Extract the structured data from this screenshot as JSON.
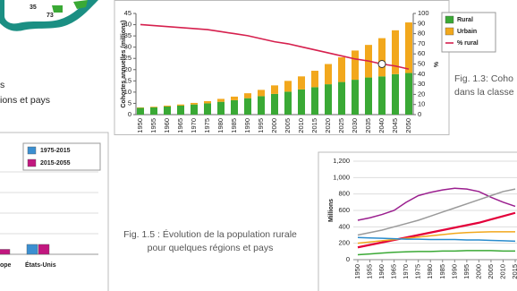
{
  "document": {
    "map_labels": [
      "35",
      "73"
    ],
    "left_heading": [
      "s",
      "ions et pays"
    ],
    "fig13_caption": [
      "Fig. 1.3: Coho",
      "dans la classe"
    ],
    "fig15_caption": [
      "Fig. 1.5 : Évolution de la population rurale",
      "pour quelques régions et pays"
    ]
  },
  "chart_data": [
    {
      "type": "bar",
      "stacked": true,
      "ylabel": "Cohortes annuelles (millions)",
      "y2label": "%",
      "categories": [
        "1950",
        "1955",
        "1960",
        "1965",
        "1970",
        "1975",
        "1980",
        "1985",
        "1990",
        "1995",
        "2000",
        "2005",
        "2010",
        "2015",
        "2020",
        "2025",
        "2030",
        "2035",
        "2040",
        "2045",
        "2050"
      ],
      "series": [
        {
          "name": "Rural",
          "color": "#3aa935",
          "values": [
            3,
            3.2,
            3.6,
            4,
            4.5,
            5,
            5.7,
            6.4,
            7.3,
            8.2,
            9.2,
            10.2,
            11.2,
            12.2,
            13.5,
            14.5,
            15.5,
            16.5,
            17,
            18,
            18.5
          ]
        },
        {
          "name": "Urbain",
          "color": "#f2a81d",
          "values": [
            0.2,
            0.3,
            0.4,
            0.5,
            0.7,
            1,
            1.3,
            1.6,
            2.2,
            2.8,
            3.8,
            4.8,
            5.8,
            7.3,
            9,
            11,
            13,
            14.5,
            17,
            19.5,
            22.5
          ]
        },
        {
          "name": "% rural",
          "color": "#d6204e",
          "axis": "y2",
          "values": [
            89,
            88,
            87,
            86,
            85,
            84,
            82,
            80,
            78,
            75,
            72,
            70,
            67,
            64,
            61,
            58,
            55,
            53,
            50,
            48,
            45
          ]
        }
      ],
      "ylim": [
        0,
        45
      ],
      "yticks": [
        0,
        5,
        10,
        15,
        20,
        25,
        30,
        35,
        40,
        45
      ],
      "y2lim": [
        0,
        100
      ],
      "y2ticks": [
        0,
        10,
        20,
        30,
        40,
        50,
        60,
        70,
        80,
        90,
        100
      ],
      "legend": "top-right"
    },
    {
      "type": "groupedbar",
      "categories": [
        "ope",
        "États-Unis"
      ],
      "series": [
        {
          "name": "1975-2015",
          "color": "#3b8fd1",
          "values": [
            2,
            3
          ]
        },
        {
          "name": "2015-2055",
          "color": "#c2177f",
          "values": [
            1.5,
            3
          ]
        }
      ],
      "ylim": [
        0,
        25
      ],
      "legend": "top-right"
    },
    {
      "type": "line",
      "ylabel": "Millions",
      "x": [
        1950,
        1955,
        1960,
        1965,
        1970,
        1975,
        1980,
        1985,
        1990,
        1995,
        2000,
        2005,
        2010,
        2015
      ],
      "xticks": [
        1950,
        1955,
        1960,
        1965,
        1970,
        1975,
        1980,
        1985,
        1990,
        1995,
        2000,
        2005,
        2010,
        2015
      ],
      "xlim": [
        1950,
        2015
      ],
      "series": [
        {
          "color": "#9b1f8f",
          "values": [
            480,
            510,
            550,
            600,
            700,
            780,
            820,
            850,
            870,
            860,
            830,
            760,
            700,
            650
          ]
        },
        {
          "color": "#9a9a9a",
          "values": [
            300,
            330,
            360,
            400,
            440,
            480,
            530,
            580,
            630,
            680,
            730,
            780,
            830,
            860
          ]
        },
        {
          "color": "#e3003a",
          "values": [
            150,
            180,
            210,
            240,
            270,
            300,
            330,
            360,
            390,
            420,
            450,
            490,
            530,
            570
          ]
        },
        {
          "color": "#f2a81d",
          "values": [
            200,
            215,
            230,
            245,
            260,
            275,
            290,
            305,
            320,
            330,
            335,
            340,
            340,
            340
          ]
        },
        {
          "color": "#2a8ccd",
          "values": [
            270,
            265,
            260,
            255,
            250,
            250,
            245,
            245,
            245,
            240,
            240,
            235,
            230,
            225
          ]
        },
        {
          "color": "#3aa935",
          "values": [
            60,
            70,
            80,
            90,
            95,
            100,
            100,
            105,
            105,
            110,
            110,
            110,
            105,
            105
          ]
        }
      ],
      "ylim": [
        0,
        1200
      ],
      "yticks": [
        0,
        200,
        400,
        600,
        800,
        {
          "value": 1000,
          "label": "1,000"
        },
        {
          "value": 1200,
          "label": "1,200"
        }
      ],
      "grid": true
    }
  ]
}
